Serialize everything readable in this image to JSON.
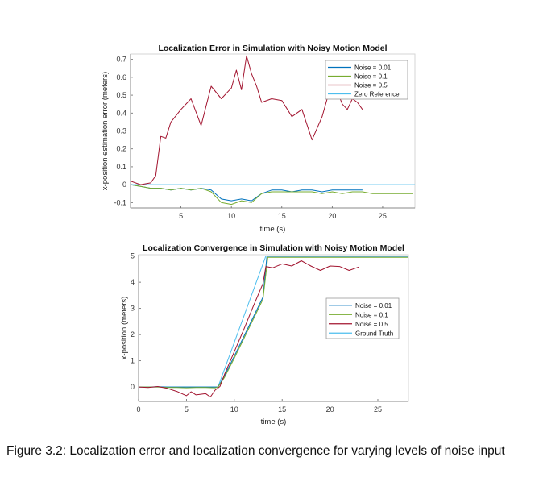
{
  "caption": "Figure 3.2: Localization error and localization convergence for varying levels of noise input",
  "chart_data": [
    {
      "type": "line",
      "title": "Localization Error in Simulation with Noisy Motion Model",
      "xlabel": "time (s)",
      "ylabel": "x-position estimation error (meters)",
      "xlim": [
        0,
        28.2
      ],
      "ylim": [
        -0.13,
        0.73
      ],
      "xticks": [
        5,
        10,
        15,
        20,
        25
      ],
      "yticks": [
        -0.1,
        0,
        0.1,
        0.2,
        0.3,
        0.4,
        0.5,
        0.6,
        0.7
      ],
      "ytick_labels": [
        "-0.1",
        "0",
        "0.1",
        "0.2",
        "0.3",
        "0.4",
        "0.5",
        "0.6",
        "0.7"
      ],
      "grid": false,
      "legend_position": "top-right",
      "series": [
        {
          "name": "Noise = 0.01",
          "color": "#0072BD",
          "x": [
            0,
            1,
            2,
            3,
            4,
            5,
            6,
            7,
            8,
            9,
            10,
            11,
            12,
            13,
            14,
            15,
            16,
            17,
            18,
            19,
            20,
            21,
            22,
            23
          ],
          "y": [
            0,
            -0.01,
            -0.02,
            -0.02,
            -0.03,
            -0.02,
            -0.03,
            -0.02,
            -0.03,
            -0.08,
            -0.09,
            -0.08,
            -0.09,
            -0.05,
            -0.03,
            -0.03,
            -0.04,
            -0.03,
            -0.03,
            -0.04,
            -0.03,
            -0.03,
            -0.03,
            -0.03
          ]
        },
        {
          "name": "Noise = 0.1",
          "color": "#77AC30",
          "x": [
            0,
            1,
            2,
            3,
            4,
            5,
            6,
            7,
            8,
            9,
            10,
            11,
            12,
            13,
            14,
            15,
            16,
            17,
            18,
            19,
            20,
            21,
            22,
            23,
            24,
            25,
            26,
            27,
            28
          ],
          "y": [
            0,
            -0.01,
            -0.02,
            -0.02,
            -0.03,
            -0.02,
            -0.03,
            -0.02,
            -0.04,
            -0.1,
            -0.11,
            -0.09,
            -0.1,
            -0.05,
            -0.04,
            -0.04,
            -0.04,
            -0.04,
            -0.04,
            -0.05,
            -0.04,
            -0.05,
            -0.04,
            -0.04,
            -0.05,
            -0.05,
            -0.05,
            -0.05,
            -0.05
          ]
        },
        {
          "name": "Noise = 0.5",
          "color": "#A2142F",
          "x": [
            0,
            1,
            2,
            2.5,
            3,
            3.5,
            4,
            5,
            6,
            7,
            8,
            9,
            10,
            10.5,
            11,
            11.5,
            12,
            12.5,
            13,
            14,
            15,
            16,
            17,
            18,
            19,
            19.5,
            20,
            20.5,
            21,
            21.5,
            22,
            22.5,
            23
          ],
          "y": [
            0.02,
            0,
            0.01,
            0.05,
            0.27,
            0.26,
            0.35,
            0.42,
            0.48,
            0.33,
            0.55,
            0.48,
            0.54,
            0.64,
            0.53,
            0.72,
            0.62,
            0.55,
            0.46,
            0.48,
            0.47,
            0.38,
            0.42,
            0.25,
            0.38,
            0.48,
            0.59,
            0.52,
            0.45,
            0.42,
            0.48,
            0.46,
            0.42
          ]
        },
        {
          "name": "Zero Reference",
          "color": "#4DBEEE",
          "x": [
            0,
            28.2
          ],
          "y": [
            0,
            0
          ]
        }
      ]
    },
    {
      "type": "line",
      "title": "Localization Convergence in Simulation with Noisy Motion Model",
      "xlabel": "time (s)",
      "ylabel": "x-position (meters)",
      "xlim": [
        0,
        28.2
      ],
      "ylim": [
        -0.55,
        5.05
      ],
      "xticks": [
        0,
        5,
        10,
        15,
        20,
        25
      ],
      "yticks": [
        0,
        1,
        2,
        3,
        4,
        5
      ],
      "grid": false,
      "legend_position": "right",
      "series": [
        {
          "name": "Noise = 0.01",
          "color": "#0072BD",
          "x": [
            0,
            1,
            2,
            3,
            4,
            5,
            6,
            7,
            8,
            8.3,
            9,
            10,
            11,
            12,
            13,
            13.4,
            14,
            16,
            18,
            20,
            22,
            24,
            26,
            28.2
          ],
          "y": [
            0,
            0,
            0.01,
            0,
            0,
            0,
            0,
            0,
            0,
            0,
            0.44,
            1.18,
            1.93,
            2.68,
            3.43,
            4.96,
            4.96,
            4.96,
            4.96,
            4.96,
            4.96,
            4.96,
            4.96,
            4.96
          ]
        },
        {
          "name": "Noise = 0.1",
          "color": "#77AC30",
          "x": [
            0,
            1,
            2,
            3,
            4,
            5,
            6,
            7,
            8,
            8.3,
            9,
            10,
            11,
            12,
            13,
            13.5,
            14,
            16,
            18,
            20,
            22,
            24,
            26,
            28.2
          ],
          "y": [
            0,
            0,
            0,
            -0.02,
            -0.02,
            -0.03,
            -0.02,
            -0.02,
            -0.03,
            0,
            0.38,
            1.1,
            1.85,
            2.6,
            3.35,
            4.95,
            4.95,
            4.95,
            4.95,
            4.95,
            4.95,
            4.95,
            4.95,
            4.95
          ]
        },
        {
          "name": "Noise = 0.5",
          "color": "#A2142F",
          "x": [
            0,
            1,
            2,
            3,
            4,
            5,
            5.5,
            6,
            7,
            7.5,
            8,
            8.5,
            9,
            10,
            11,
            12,
            13,
            13.3,
            14,
            15,
            16,
            17,
            18,
            19,
            20,
            21,
            22,
            23
          ],
          "y": [
            0,
            -0.02,
            0.02,
            -0.05,
            -0.17,
            -0.33,
            -0.18,
            -0.3,
            -0.25,
            -0.38,
            -0.12,
            0.02,
            0.5,
            1.35,
            2.2,
            3.1,
            3.95,
            4.6,
            4.55,
            4.7,
            4.62,
            4.82,
            4.62,
            4.45,
            4.62,
            4.6,
            4.45,
            4.58
          ]
        },
        {
          "name": "Ground Truth",
          "color": "#4DBEEE",
          "x": [
            0,
            8.3,
            13.3,
            28.2
          ],
          "y": [
            0,
            0,
            5,
            5
          ]
        }
      ]
    }
  ]
}
